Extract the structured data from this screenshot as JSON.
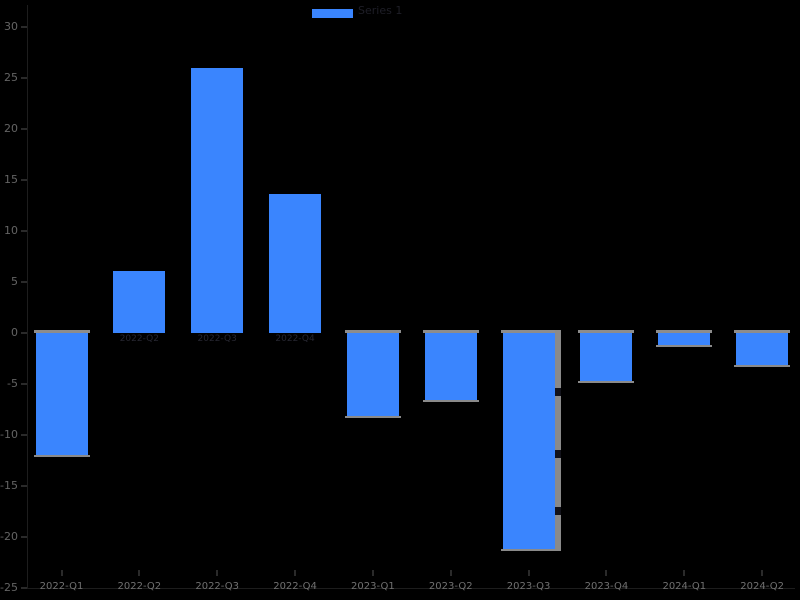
{
  "chart_data": {
    "type": "bar",
    "title": "",
    "xlabel": "",
    "ylabel": "",
    "categories": [
      "2022-Q1",
      "2022-Q2",
      "2022-Q3",
      "2022-Q4",
      "2023-Q1",
      "2023-Q2",
      "2023-Q3",
      "2023-Q4",
      "2024-Q1",
      "2024-Q2"
    ],
    "values": [
      -12.0,
      6.1,
      26.0,
      13.6,
      -8.1,
      -6.6,
      -21.2,
      -4.7,
      -1.2,
      -3.1
    ],
    "series": [
      {
        "name": "Series 1",
        "values": [
          -12.0,
          6.1,
          26.0,
          13.6,
          -8.1,
          -6.6,
          -21.2,
          -4.7,
          -1.2,
          -3.1
        ]
      }
    ],
    "ylim": [
      -25,
      30
    ],
    "yticks": [
      30,
      25,
      20,
      15,
      10,
      5,
      0,
      -5,
      -10,
      -15,
      -20,
      -25
    ],
    "grid": false,
    "legend_position": "upper center",
    "legend_entries": [
      "Series 1"
    ],
    "bar_color": "#3a85fe",
    "background_color": "#000000",
    "tick_label_color": "#646464"
  },
  "legend": {
    "label": "Series 1"
  }
}
